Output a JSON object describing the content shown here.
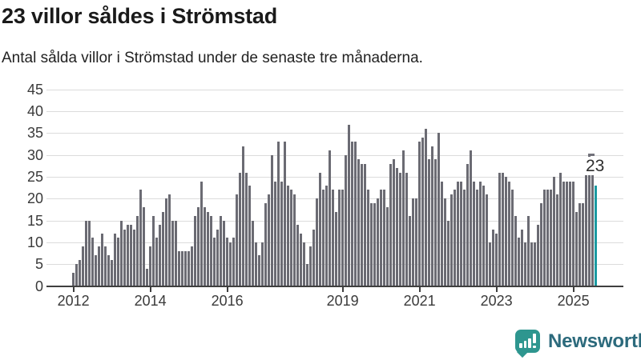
{
  "header": {
    "title": "23 villor såldes i Strömstad",
    "subtitle": "Antal sålda villor i Strömstad under de senaste tre månaderna."
  },
  "chart_data": {
    "type": "bar",
    "title": "23 villor såldes i Strömstad",
    "subtitle": "Antal sålda villor i Strömstad under de senaste tre månaderna.",
    "xlabel": "",
    "ylabel": "",
    "ylim": [
      0,
      45
    ],
    "grid": true,
    "y_ticks": [
      0,
      5,
      10,
      15,
      20,
      25,
      30,
      35,
      40,
      45
    ],
    "x_ticks": [
      {
        "label": "2012",
        "month_index": 0
      },
      {
        "label": "2014",
        "month_index": 24
      },
      {
        "label": "2016",
        "month_index": 48
      },
      {
        "label": "2019",
        "month_index": 84
      },
      {
        "label": "2021",
        "month_index": 108
      },
      {
        "label": "2023",
        "month_index": 132
      },
      {
        "label": "2025",
        "month_index": 156
      }
    ],
    "x_start_year": 2012,
    "values": [
      3,
      5,
      6,
      9,
      15,
      15,
      11,
      7,
      9,
      12,
      9,
      7,
      6,
      12,
      11,
      15,
      13,
      14,
      14,
      13,
      16,
      22,
      18,
      4,
      9,
      16,
      11,
      14,
      17,
      20,
      21,
      15,
      15,
      8,
      8,
      8,
      8,
      9,
      16,
      18,
      24,
      18,
      17,
      16,
      11,
      13,
      16,
      15,
      11,
      10,
      11,
      21,
      26,
      32,
      26,
      23,
      15,
      10,
      7,
      10,
      19,
      21,
      30,
      24,
      33,
      24,
      33,
      23,
      22,
      21,
      14,
      12,
      10,
      5,
      9,
      13,
      20,
      26,
      22,
      23,
      31,
      22,
      17,
      22,
      22,
      30,
      37,
      33,
      33,
      29,
      28,
      28,
      22,
      19,
      19,
      20,
      22,
      22,
      18,
      28,
      29,
      27,
      26,
      31,
      26,
      16,
      20,
      20,
      33,
      34,
      36,
      29,
      32,
      29,
      35,
      24,
      20,
      15,
      21,
      22,
      24,
      24,
      22,
      28,
      31,
      24,
      22,
      24,
      23,
      21,
      10,
      13,
      12,
      26,
      26,
      25,
      24,
      22,
      16,
      11,
      13,
      10,
      16,
      10,
      10,
      14,
      19,
      22,
      22,
      22,
      25,
      21,
      26,
      24,
      24,
      24,
      24,
      17,
      19,
      19,
      26,
      30,
      26,
      23
    ],
    "highlight_last_bar": true,
    "last_value": 23,
    "annotation": {
      "text": "23"
    },
    "bar_color": "#6b6b73",
    "highlight_color": "#1a9aa1",
    "legend_position": "none"
  },
  "logo": {
    "text": "Newsworthy",
    "icon": "newsworthy-bar-chart-bubble-icon",
    "bubble_color": "#2e968f",
    "text_color": "#2c6a7c"
  }
}
